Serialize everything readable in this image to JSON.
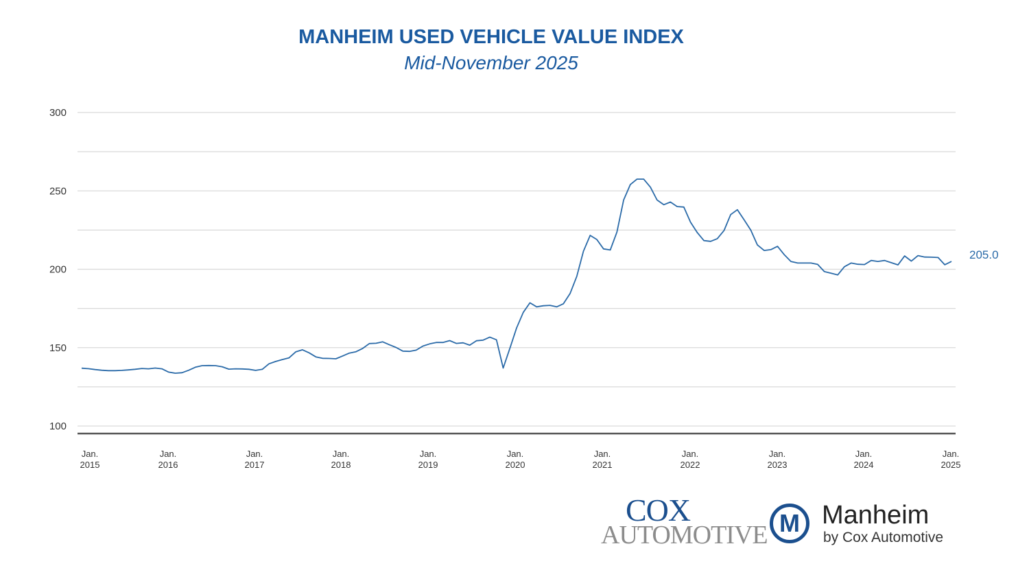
{
  "chart_data": {
    "type": "line",
    "title": "MANHEIM USED VEHICLE VALUE INDEX",
    "subtitle": "Mid-November 2025",
    "xlabel": "",
    "ylabel": "",
    "ylim": [
      95,
      300
    ],
    "yticks": [
      100,
      150,
      200,
      250,
      300
    ],
    "minor_gridlines": [
      125,
      175,
      225,
      275
    ],
    "grid": true,
    "legend": "none",
    "x_tick_labels": [
      {
        "month": "Jan.",
        "year": "2015",
        "index": 0
      },
      {
        "month": "Jan.",
        "year": "2016",
        "index": 11
      },
      {
        "month": "Jan.",
        "year": "2017",
        "index": 23
      },
      {
        "month": "Jan.",
        "year": "2018",
        "index": 35
      },
      {
        "month": "Jan.",
        "year": "2019",
        "index": 47
      },
      {
        "month": "Jan.",
        "year": "2020",
        "index": 59
      },
      {
        "month": "Jan.",
        "year": "2021",
        "index": 71
      },
      {
        "month": "Jan.",
        "year": "2022",
        "index": 83
      },
      {
        "month": "Jan.",
        "year": "2023",
        "index": 95
      },
      {
        "month": "Jan.",
        "year": "2024",
        "index": 107
      },
      {
        "month": "Jan.",
        "year": "2025",
        "index": 119
      }
    ],
    "series": [
      {
        "name": "Manheim Used Vehicle Value Index",
        "color": "#2a6aa8",
        "values": [
          136.9,
          136.6,
          136.0,
          135.6,
          135.3,
          135.3,
          135.5,
          135.8,
          136.2,
          136.7,
          136.5,
          137.0,
          136.5,
          134.4,
          133.7,
          134.0,
          135.6,
          137.5,
          138.5,
          138.6,
          138.5,
          137.8,
          136.3,
          136.5,
          136.4,
          136.2,
          135.5,
          136.2,
          139.7,
          141.2,
          142.4,
          143.5,
          147.3,
          148.6,
          146.7,
          144.1,
          143.2,
          143.1,
          142.9,
          144.7,
          146.5,
          147.4,
          149.5,
          152.6,
          152.8,
          153.7,
          151.8,
          150.1,
          147.8,
          147.6,
          148.4,
          151.0,
          152.4,
          153.3,
          153.3,
          154.5,
          152.7,
          153.1,
          151.6,
          154.4,
          154.8,
          156.7,
          155.0,
          137.0,
          149.5,
          162.5,
          172.5,
          178.6,
          176.0,
          176.7,
          177.0,
          176.0,
          178.0,
          184.5,
          195.5,
          211.5,
          221.6,
          219.0,
          213.0,
          212.3,
          223.7,
          244.2,
          254.0,
          257.5,
          257.5,
          252.4,
          244.2,
          241.2,
          242.9,
          240.0,
          239.7,
          230.0,
          223.4,
          218.3,
          217.8,
          219.5,
          224.7,
          234.9,
          238.0,
          231.6,
          225.0,
          215.5,
          212.0,
          212.5,
          214.6,
          209.3,
          205.0,
          204.0,
          204.0,
          204.0,
          203.1,
          198.5,
          197.5,
          196.4,
          201.6,
          204.0,
          203.2,
          203.0,
          205.6,
          205.0,
          205.6,
          204.2,
          202.8,
          208.5,
          205.2,
          208.7,
          207.8,
          207.7,
          207.5,
          202.9,
          205.0
        ]
      }
    ],
    "end_label": "205.0"
  },
  "logos": {
    "cox_top": "COX",
    "cox_bottom": "AUTOMOTIVE",
    "manheim_glyph": "M",
    "manheim_name": "Manheim",
    "manheim_sub": "by Cox Automotive"
  }
}
